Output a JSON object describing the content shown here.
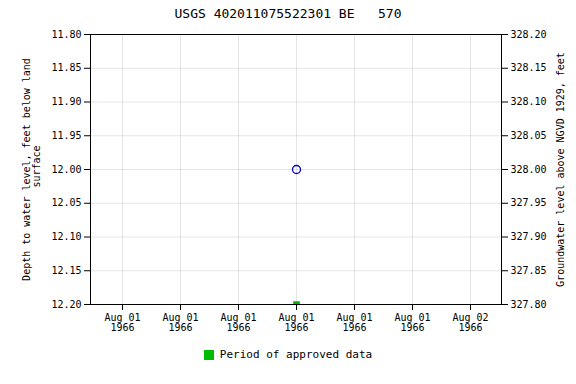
{
  "chart_data": {
    "type": "scatter",
    "title": "USGS 402011075522301 BE   570",
    "ylabel": "Depth to water level, feet below land\n surface",
    "y2label": "Groundwater level above NGVD 1929, feet",
    "categories": [
      "Aug 01\n1966",
      "Aug 01\n1966",
      "Aug 01\n1966",
      "Aug 01\n1966",
      "Aug 01\n1966",
      "Aug 01\n1966",
      "Aug 02\n1966"
    ],
    "series": [
      {
        "color": "#0000cc",
        "marker": "circle",
        "values": [
          null,
          null,
          null,
          12.0,
          null,
          null,
          null
        ]
      },
      {
        "name": "Period of approved data",
        "color": "#00bb00",
        "marker": "square",
        "values": [
          null,
          null,
          null,
          12.2,
          null,
          null,
          null
        ]
      }
    ],
    "ylim": [
      12.2,
      11.8
    ],
    "yticks": [
      {
        "value": 11.8,
        "label": "11.80"
      },
      11.85,
      {
        "value": 11.9,
        "label": "11.90"
      },
      11.95,
      {
        "value": 12.0,
        "label": "12.00"
      },
      12.05,
      {
        "value": 12.1,
        "label": "12.10"
      },
      12.15,
      {
        "value": 12.2,
        "label": "12.20"
      }
    ],
    "y2lim": [
      327.8,
      328.2
    ],
    "y2ticks": [
      {
        "value": 328.2,
        "label": "328.20"
      },
      328.15,
      {
        "value": 328.1,
        "label": "328.10"
      },
      328.05,
      {
        "value": 328.0,
        "label": "328.00"
      },
      327.95,
      {
        "value": 327.9,
        "label": "327.90"
      },
      327.85,
      {
        "value": 327.8,
        "label": "327.80"
      }
    ],
    "grid": true,
    "legend": "bottom"
  }
}
